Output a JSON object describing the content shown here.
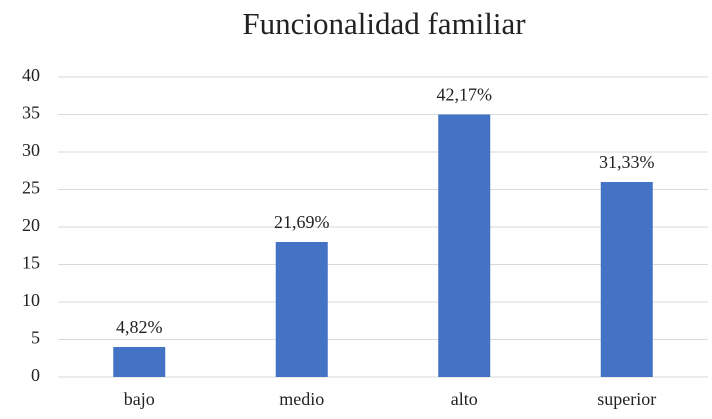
{
  "chart_data": {
    "type": "bar",
    "title": "Funcionalidad familiar",
    "categories": [
      "bajo",
      "medio",
      "alto",
      "superior"
    ],
    "values": [
      4,
      18,
      35,
      26
    ],
    "percent_labels": [
      "4,82%",
      "21,69%",
      "42,17%",
      "31,33%"
    ],
    "color": "#4472c4",
    "ylim": [
      0,
      40
    ],
    "yticks": [
      0,
      5,
      10,
      15,
      20,
      25,
      30,
      35,
      40
    ],
    "grid": true
  }
}
